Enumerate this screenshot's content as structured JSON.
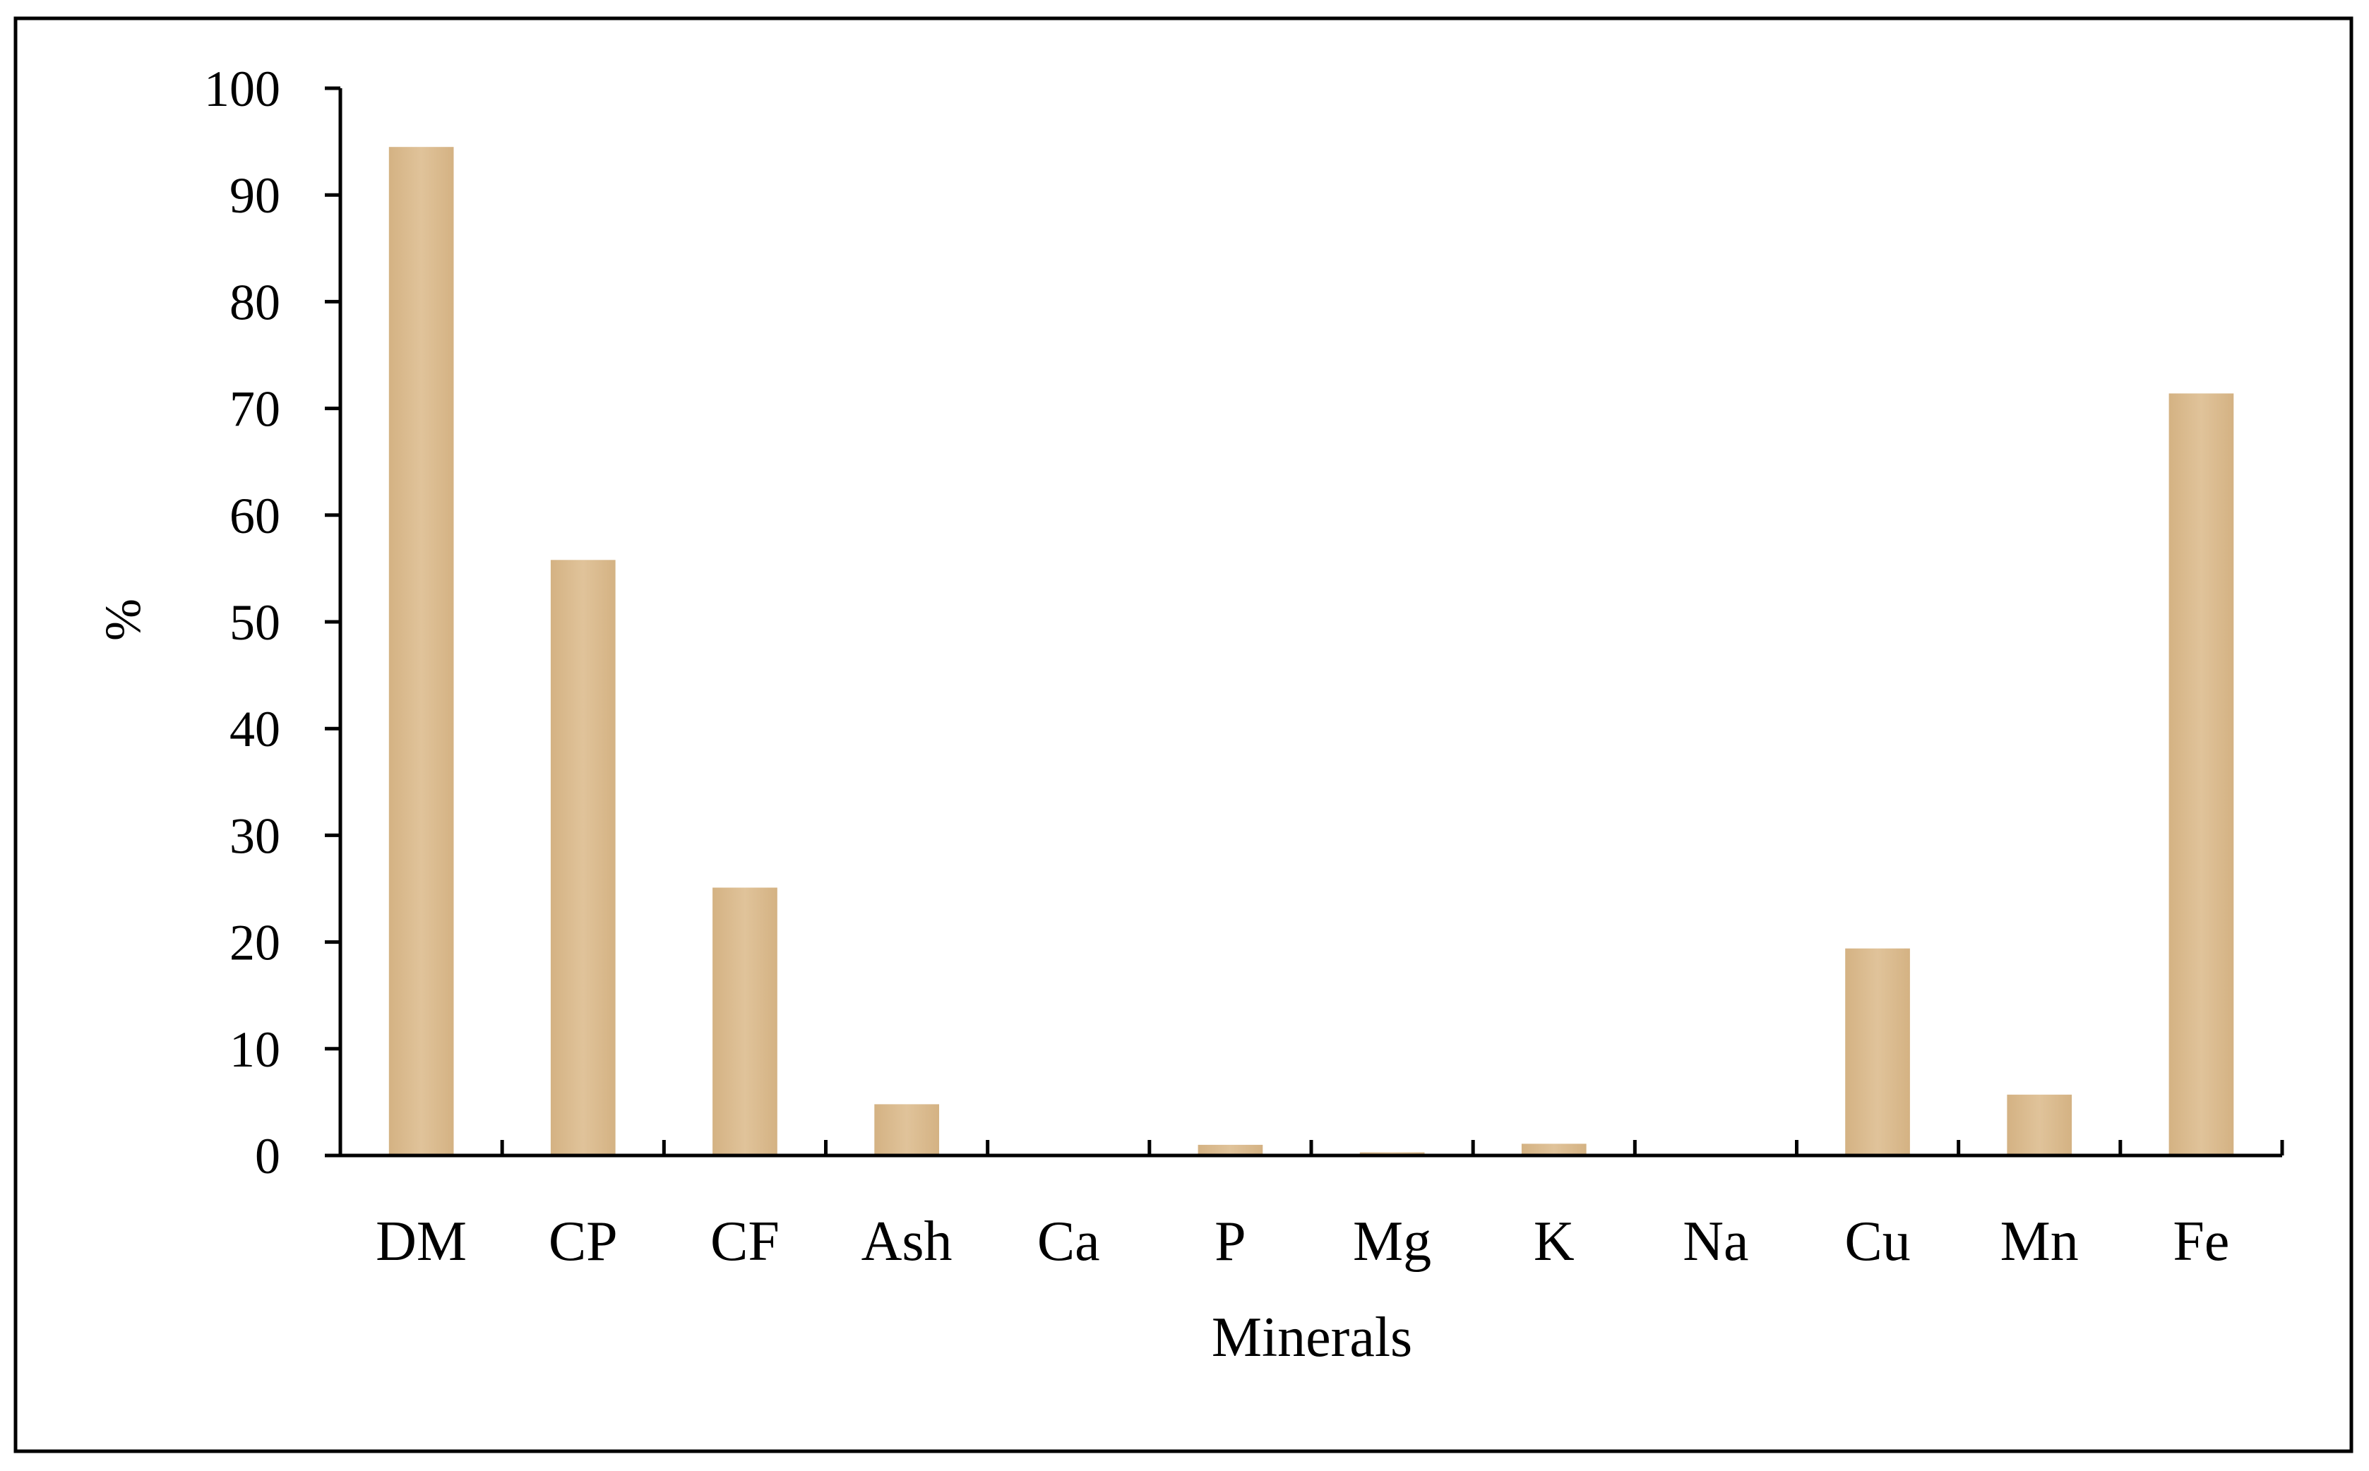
{
  "colors": {
    "bar_fill": "#e0c39a",
    "bar_fill_dark": "#d4b283",
    "axis": "#000000",
    "frame": "#000000",
    "background": "#ffffff"
  },
  "chart_data": {
    "type": "bar",
    "title": "",
    "xlabel": "Minerals",
    "ylabel": "%",
    "categories": [
      "DM",
      "CP",
      "CF",
      "Ash",
      "Ca",
      "P",
      "Mg",
      "K",
      "Na",
      "Cu",
      "Mn",
      "Fe"
    ],
    "values": [
      94.5,
      55.8,
      25.1,
      4.8,
      0.05,
      1.0,
      0.3,
      1.1,
      0.05,
      19.4,
      5.7,
      71.4
    ],
    "ylim": [
      0,
      100
    ],
    "yticks": [
      0,
      10,
      20,
      30,
      40,
      50,
      60,
      70,
      80,
      90,
      100
    ],
    "grid": false,
    "legend": "none"
  }
}
